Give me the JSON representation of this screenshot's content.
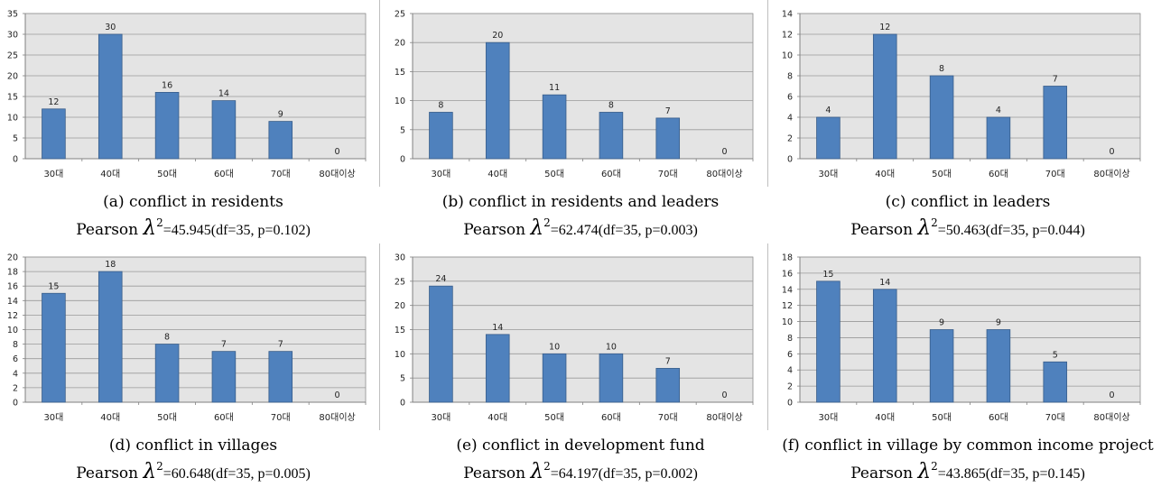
{
  "colors": {
    "plot_bg": "#e4e4e4",
    "bar_fill": "#4f81bd",
    "bar_stroke": "#385d8a",
    "grid": "#999999"
  },
  "chart_data": [
    {
      "type": "bar",
      "caption": "(a) conflict in residents",
      "stat_prefix": "Pearson",
      "stat_symbol": "λ",
      "stat_exp": "2",
      "stat_text": "=45.945(df=35, p=0.102)",
      "categories": [
        "30대",
        "40대",
        "50대",
        "60대",
        "70대",
        "80대이상"
      ],
      "values": [
        12,
        30,
        16,
        14,
        9,
        0
      ],
      "ylim": [
        0,
        35
      ],
      "yticks": [
        0,
        5,
        10,
        15,
        20,
        25,
        30,
        35
      ],
      "grid": true
    },
    {
      "type": "bar",
      "caption": "(b) conflict in residents and leaders",
      "stat_prefix": "Pearson",
      "stat_symbol": "λ",
      "stat_exp": "2",
      "stat_text": "=62.474(df=35, p=0.003)",
      "categories": [
        "30대",
        "40대",
        "50대",
        "60대",
        "70대",
        "80대이상"
      ],
      "values": [
        8,
        20,
        11,
        8,
        7,
        0
      ],
      "ylim": [
        0,
        25
      ],
      "yticks": [
        0,
        5,
        10,
        15,
        20,
        25
      ],
      "grid": true
    },
    {
      "type": "bar",
      "caption": "(c) conflict in leaders",
      "stat_prefix": "Pearson",
      "stat_symbol": "λ",
      "stat_exp": "2",
      "stat_text": "=50.463(df=35, p=0.044)",
      "categories": [
        "30대",
        "40대",
        "50대",
        "60대",
        "70대",
        "80대이상"
      ],
      "values": [
        4,
        12,
        8,
        4,
        7,
        0
      ],
      "ylim": [
        0,
        14
      ],
      "yticks": [
        0,
        2,
        4,
        6,
        8,
        10,
        12,
        14
      ],
      "grid": true
    },
    {
      "type": "bar",
      "caption": "(d) conflict in villages",
      "stat_prefix": "Pearson",
      "stat_symbol": "λ",
      "stat_exp": "2",
      "stat_text": "=60.648(df=35, p=0.005)",
      "categories": [
        "30대",
        "40대",
        "50대",
        "60대",
        "70대",
        "80대이상"
      ],
      "values": [
        15,
        18,
        8,
        7,
        7,
        0
      ],
      "ylim": [
        0,
        20
      ],
      "yticks": [
        0,
        2,
        4,
        6,
        8,
        10,
        12,
        14,
        16,
        18,
        20
      ],
      "grid": true
    },
    {
      "type": "bar",
      "caption": "(e) conflict in development fund",
      "stat_prefix": "Pearson",
      "stat_symbol": "λ",
      "stat_exp": "2",
      "stat_text": "=64.197(df=35, p=0.002)",
      "categories": [
        "30대",
        "40대",
        "50대",
        "60대",
        "70대",
        "80대이상"
      ],
      "values": [
        24,
        14,
        10,
        10,
        7,
        0
      ],
      "ylim": [
        0,
        30
      ],
      "yticks": [
        0,
        5,
        10,
        15,
        20,
        25,
        30
      ],
      "grid": true
    },
    {
      "type": "bar",
      "caption": "(f) conflict in village by common income project",
      "stat_prefix": "Pearson",
      "stat_symbol": "λ",
      "stat_exp": "2",
      "stat_text": "=43.865(df=35, p=0.145)",
      "categories": [
        "30대",
        "40대",
        "50대",
        "60대",
        "70대",
        "80대이상"
      ],
      "values": [
        15,
        14,
        9,
        9,
        5,
        0
      ],
      "ylim": [
        0,
        18
      ],
      "yticks": [
        0,
        2,
        4,
        6,
        8,
        10,
        12,
        14,
        16,
        18
      ],
      "grid": true
    }
  ]
}
